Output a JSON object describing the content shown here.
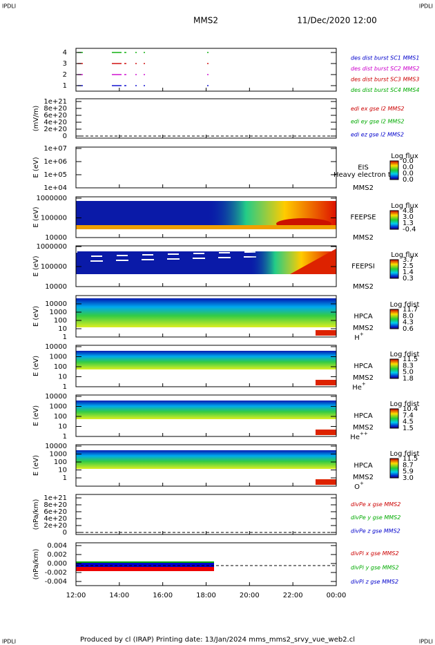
{
  "header": {
    "corner_left": "IPDLI",
    "corner_right": "IPDLI",
    "mission": "MMS2",
    "date": "11/Dec/2020 12:00"
  },
  "panels": [
    {
      "ylabel": "",
      "yticks": [
        "4",
        "3",
        "2",
        "1"
      ],
      "legend": [
        {
          "text": "des dist burst SC1 MMS1",
          "color": "#0000cc"
        },
        {
          "text": "des dist burst SC2 MMS2",
          "color": "#cc00cc"
        },
        {
          "text": "des dist burst SC3 MMS3",
          "color": "#cc0000"
        },
        {
          "text": "des dist burst SC4 MMS4",
          "color": "#00aa00"
        }
      ]
    },
    {
      "ylabel": "(mV/m)",
      "yticks": [
        "1e+21",
        "8e+20",
        "6e+20",
        "4e+20",
        "2e+20",
        "0"
      ],
      "legend": [
        {
          "text": "edi ex gse l2 MMS2",
          "color": "#cc0000"
        },
        {
          "text": "edi ey gse l2 MMS2",
          "color": "#00aa00"
        },
        {
          "text": "edi ez gse l2 MMS2",
          "color": "#0000cc"
        }
      ]
    },
    {
      "ylabel": "E (eV)",
      "yticks": [
        "1e+07",
        "1e+06",
        "1e+05",
        "1e+04"
      ],
      "instrument": [
        "EIS",
        "MMS2"
      ],
      "note": "Heavy electron to",
      "colorbar": {
        "title": "Log flux",
        "labels": [
          "0.0",
          "0.0",
          "0.0",
          "0.0"
        ]
      }
    },
    {
      "ylabel": "E (eV)",
      "yticks": [
        "1000000",
        "100000",
        "10000"
      ],
      "instrument": [
        "FEEPSE",
        "MMS2"
      ],
      "colorbar": {
        "title": "Log flux",
        "labels": [
          "4.8",
          "3.0",
          "1.3",
          "-0.4"
        ]
      }
    },
    {
      "ylabel": "E (eV)",
      "yticks": [
        "1000000",
        "100000",
        "10000"
      ],
      "instrument": [
        "FEEPSI",
        "MMS2"
      ],
      "colorbar": {
        "title": "Log flux",
        "labels": [
          "3.7",
          "2.5",
          "1.4",
          "0.3"
        ]
      }
    },
    {
      "ylabel": "E (eV)",
      "yticks": [
        "10000",
        "1000",
        "100",
        "10",
        "1"
      ],
      "instrument": [
        "HPCA",
        "MMS2"
      ],
      "ion": {
        "base": "H",
        "sup": "+"
      },
      "colorbar": {
        "title": "Log fdist",
        "labels": [
          "11.7",
          "8.0",
          "4.3",
          "0.6"
        ]
      }
    },
    {
      "ylabel": "E (eV)",
      "yticks": [
        "10000",
        "1000",
        "100",
        "10",
        "1"
      ],
      "instrument": [
        "HPCA",
        "MMS2"
      ],
      "ion": {
        "base": "He",
        "sup": "+"
      },
      "colorbar": {
        "title": "Log fdist",
        "labels": [
          "11.5",
          "8.3",
          "5.0",
          "1.8"
        ]
      }
    },
    {
      "ylabel": "E (eV)",
      "yticks": [
        "10000",
        "1000",
        "100",
        "10",
        "1"
      ],
      "instrument": [
        "HPCA",
        "MMS2"
      ],
      "ion": {
        "base": "He",
        "sup": "++"
      },
      "colorbar": {
        "title": "Log fdist",
        "labels": [
          "10.4",
          "7.4",
          "4.5",
          "1.5"
        ]
      }
    },
    {
      "ylabel": "E (eV)",
      "yticks": [
        "10000",
        "1000",
        "100",
        "10",
        "1"
      ],
      "instrument": [
        "HPCA",
        "MMS2"
      ],
      "ion": {
        "base": "O",
        "sup": "+"
      },
      "colorbar": {
        "title": "Log fdist",
        "labels": [
          "11.5",
          "8.7",
          "5.9",
          "3.0"
        ]
      }
    },
    {
      "ylabel": "(nPa/km)",
      "yticks": [
        "1e+21",
        "8e+20",
        "6e+20",
        "4e+20",
        "2e+20",
        "0"
      ],
      "legend": [
        {
          "text": "divPe x gse MMS2",
          "color": "#cc0000"
        },
        {
          "text": "divPe y gse MMS2",
          "color": "#00aa00"
        },
        {
          "text": "divPe z gse MMS2",
          "color": "#0000cc"
        }
      ]
    },
    {
      "ylabel": "(nPa/km)",
      "yticks": [
        "0.004",
        "0.002",
        "0.000",
        "-0.002",
        "-0.004"
      ],
      "legend": [
        {
          "text": "divPi x gse MMS2",
          "color": "#cc0000"
        },
        {
          "text": "divPi y gse MMS2",
          "color": "#00aa00"
        },
        {
          "text": "divPi z gse MMS2",
          "color": "#0000cc"
        }
      ]
    }
  ],
  "x_axis": {
    "ticks": [
      "12:00",
      "14:00",
      "16:00",
      "18:00",
      "20:00",
      "22:00",
      "00:00"
    ]
  },
  "footer": {
    "corner_left": "IPDLI",
    "corner_right": "IPDLI",
    "text": "Produced by cl (IRAP)   Printing date: 13/Jan/2024   mms_mms2_srvy_vue_web2.cl"
  }
}
